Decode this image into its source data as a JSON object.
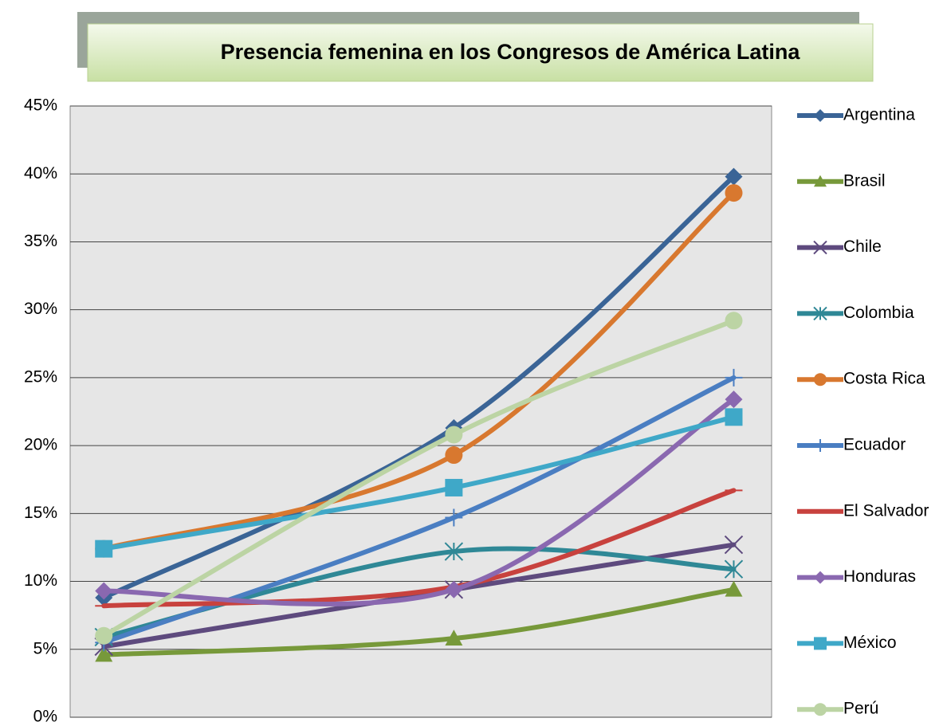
{
  "chart_data": {
    "type": "line",
    "title": "Presencia femenina en los Congresos de América Latina",
    "categories": [
      null,
      null,
      null
    ],
    "ylim": [
      0,
      45
    ],
    "yticks": [
      {
        "value": 0,
        "label": "0%"
      },
      {
        "value": 5,
        "label": "5%"
      },
      {
        "value": 10,
        "label": "10%"
      },
      {
        "value": 15,
        "label": "15%"
      },
      {
        "value": 20,
        "label": "20%"
      },
      {
        "value": 25,
        "label": "25%"
      },
      {
        "value": 30,
        "label": "30%"
      },
      {
        "value": 35,
        "label": "35%"
      },
      {
        "value": 40,
        "label": "40%"
      },
      {
        "value": 45,
        "label": "45%"
      }
    ],
    "grid": true,
    "legend": "right",
    "series": [
      {
        "name": "Argentina",
        "color": "#3a6496",
        "marker": "diamond",
        "values": [
          8.8,
          21.3,
          39.8
        ]
      },
      {
        "name": "Brasil",
        "color": "#77993a",
        "marker": "triangle",
        "values": [
          4.6,
          5.8,
          9.4
        ]
      },
      {
        "name": "Chile",
        "color": "#5e4a7e",
        "marker": "x",
        "values": [
          5.2,
          9.4,
          12.7
        ]
      },
      {
        "name": "Colombia",
        "color": "#2f8896",
        "marker": "asterisk",
        "values": [
          5.9,
          12.2,
          10.9
        ]
      },
      {
        "name": "Costa Rica",
        "color": "#d8782f",
        "marker": "circle",
        "values": [
          12.4,
          19.3,
          38.6
        ]
      },
      {
        "name": "Ecuador",
        "color": "#4a7ec2",
        "marker": "plus",
        "values": [
          5.5,
          14.7,
          25.0
        ]
      },
      {
        "name": "El Salvador",
        "color": "#c8423e",
        "marker": "dash",
        "values": [
          8.2,
          9.6,
          16.7
        ]
      },
      {
        "name": "Honduras",
        "color": "#8a68b0",
        "marker": "diamond",
        "values": [
          9.3,
          9.4,
          23.4
        ]
      },
      {
        "name": "México",
        "color": "#3fa8c8",
        "marker": "square",
        "values": [
          12.4,
          16.9,
          22.1
        ]
      },
      {
        "name": "Perú",
        "color": "#bcd4a4",
        "marker": "circle",
        "values": [
          6.0,
          20.8,
          29.2
        ]
      }
    ]
  }
}
